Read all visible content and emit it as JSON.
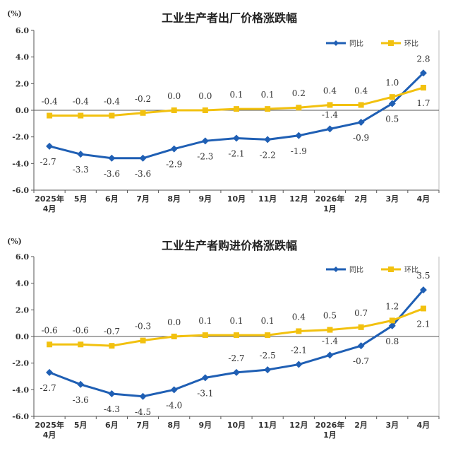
{
  "colors": {
    "yoy": "#1f5fb4",
    "mom": "#f2c10f"
  },
  "chart_data": [
    {
      "type": "line",
      "title": "工业生产者出厂价格涨跌幅",
      "unit": "(%)",
      "yticks": [
        "6.0",
        "4.0",
        "2.0",
        "0.0",
        "-2.0",
        "-4.0",
        "-6.0"
      ],
      "ylim": [
        -6,
        6
      ],
      "legend_position": "top-right",
      "categories": [
        {
          "l1": "2025年",
          "l2": "4月"
        },
        {
          "l1": "5月",
          "l2": ""
        },
        {
          "l1": "6月",
          "l2": ""
        },
        {
          "l1": "7月",
          "l2": ""
        },
        {
          "l1": "8月",
          "l2": ""
        },
        {
          "l1": "9月",
          "l2": ""
        },
        {
          "l1": "10月",
          "l2": ""
        },
        {
          "l1": "11月",
          "l2": ""
        },
        {
          "l1": "12月",
          "l2": ""
        },
        {
          "l1": "2026年",
          "l2": "1月"
        },
        {
          "l1": "2月",
          "l2": ""
        },
        {
          "l1": "3月",
          "l2": ""
        },
        {
          "l1": "4月",
          "l2": ""
        }
      ],
      "series": [
        {
          "name": "同比",
          "color": "#1f5fb4",
          "marker": "diamond",
          "values": [
            -2.7,
            -3.3,
            -3.6,
            -3.6,
            -2.9,
            -2.3,
            -2.1,
            -2.2,
            -1.9,
            -1.4,
            -0.9,
            0.5,
            2.8
          ],
          "labels": [
            "-2.7",
            "-3.3",
            "-3.6",
            "-3.6",
            "-2.9",
            "-2.3",
            "-2.1",
            "-2.2",
            "-1.9",
            "-1.4",
            "-0.9",
            "0.5",
            "2.8"
          ]
        },
        {
          "name": "环比",
          "color": "#f2c10f",
          "marker": "square",
          "values": [
            -0.4,
            -0.4,
            -0.4,
            -0.2,
            0.0,
            0.0,
            0.1,
            0.1,
            0.2,
            0.4,
            0.4,
            1.0,
            1.7
          ],
          "labels": [
            "-0.4",
            "-0.4",
            "-0.4",
            "-0.2",
            "0.0",
            "0.0",
            "0.1",
            "0.1",
            "0.2",
            "0.4",
            "0.4",
            "1.0",
            "1.7"
          ]
        }
      ]
    },
    {
      "type": "line",
      "title": "工业生产者购进价格涨跌幅",
      "unit": "(%)",
      "yticks": [
        "6.0",
        "4.0",
        "2.0",
        "0.0",
        "-2.0",
        "-4.0",
        "-6.0"
      ],
      "ylim": [
        -6,
        6
      ],
      "legend_position": "top-right",
      "categories": [
        {
          "l1": "2025年",
          "l2": "4月"
        },
        {
          "l1": "5月",
          "l2": ""
        },
        {
          "l1": "6月",
          "l2": ""
        },
        {
          "l1": "7月",
          "l2": ""
        },
        {
          "l1": "8月",
          "l2": ""
        },
        {
          "l1": "9月",
          "l2": ""
        },
        {
          "l1": "10月",
          "l2": ""
        },
        {
          "l1": "11月",
          "l2": ""
        },
        {
          "l1": "12月",
          "l2": ""
        },
        {
          "l1": "2026年",
          "l2": "1月"
        },
        {
          "l1": "2月",
          "l2": ""
        },
        {
          "l1": "3月",
          "l2": ""
        },
        {
          "l1": "4月",
          "l2": ""
        }
      ],
      "series": [
        {
          "name": "同比",
          "color": "#1f5fb4",
          "marker": "diamond",
          "values": [
            -2.7,
            -3.6,
            -4.3,
            -4.5,
            -4.0,
            -3.1,
            -2.7,
            -2.5,
            -2.1,
            -1.4,
            -0.7,
            0.8,
            3.5
          ],
          "labels": [
            "-2.7",
            "-3.6",
            "-4.3",
            "-4.5",
            "-4.0",
            "-3.1",
            "-2.7",
            "-2.5",
            "-2.1",
            "-1.4",
            "-0.7",
            "0.8",
            "3.5"
          ]
        },
        {
          "name": "环比",
          "color": "#f2c10f",
          "marker": "square",
          "values": [
            -0.6,
            -0.6,
            -0.7,
            -0.3,
            0.0,
            0.1,
            0.1,
            0.1,
            0.4,
            0.5,
            0.7,
            1.2,
            2.1
          ],
          "labels": [
            "-0.6",
            "-0.6",
            "-0.7",
            "-0.3",
            "0.0",
            "0.1",
            "0.1",
            "0.1",
            "0.4",
            "0.5",
            "0.7",
            "1.2",
            "2.1"
          ]
        }
      ]
    }
  ]
}
